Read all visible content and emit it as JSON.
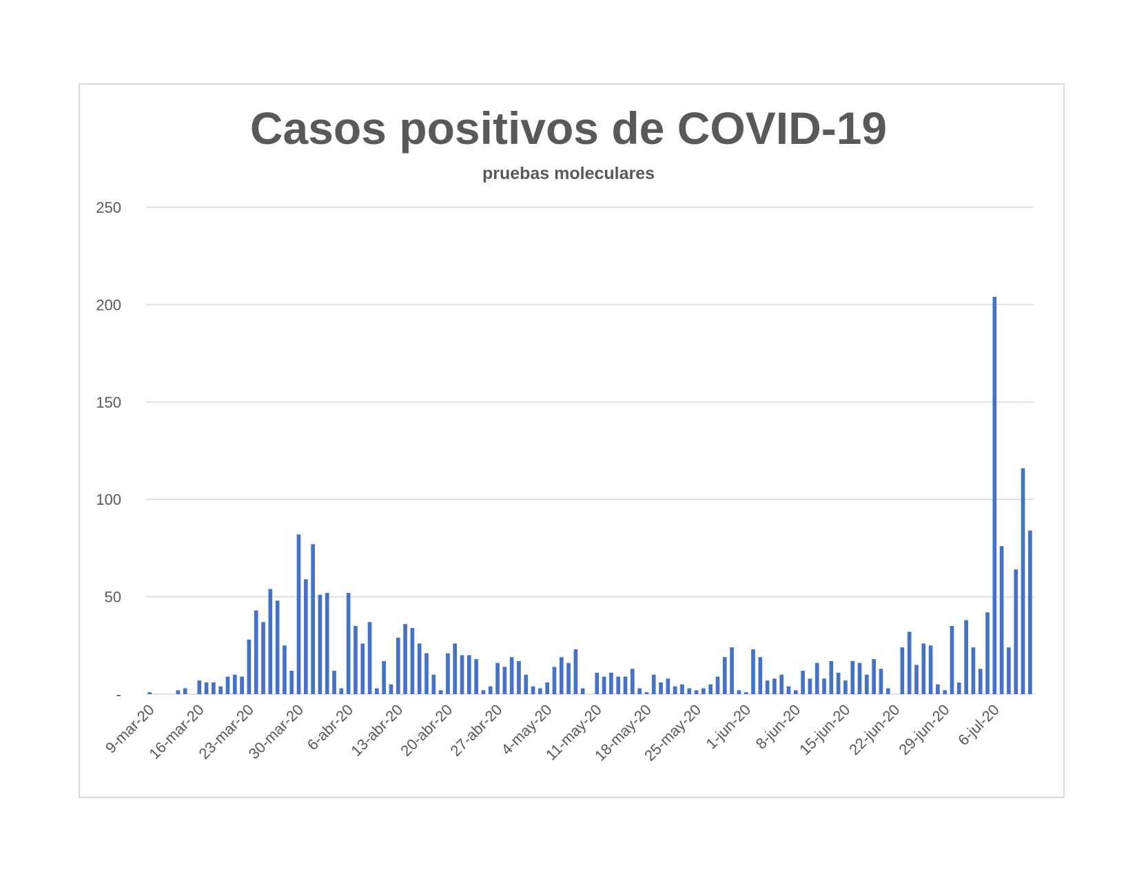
{
  "chart_data": {
    "type": "bar",
    "title": "Casos positivos de COVID-19",
    "subtitle": "pruebas moleculares",
    "xlabel": "",
    "ylabel": "",
    "start_date": "2020-03-09",
    "ylim": [
      0,
      250
    ],
    "yticks": [
      0,
      50,
      100,
      150,
      200,
      250
    ],
    "ytick_labels": [
      "-",
      "50",
      "100",
      "150",
      "200",
      "250"
    ],
    "xtick_labels": [
      "9-mar-20",
      "16-mar-20",
      "23-mar-20",
      "30-mar-20",
      "6-abr-20",
      "13-abr-20",
      "20-abr-20",
      "27-abr-20",
      "4-may-20",
      "11-may-20",
      "18-may-20",
      "25-may-20",
      "1-jun-20",
      "8-jun-20",
      "15-jun-20",
      "22-jun-20",
      "29-jun-20",
      "6-jul-20"
    ],
    "grid": true,
    "bar_color": "#4472c4",
    "values": [
      1,
      0,
      0,
      0,
      2,
      3,
      0,
      7,
      6,
      6,
      4,
      9,
      10,
      9,
      28,
      43,
      37,
      54,
      48,
      25,
      12,
      82,
      59,
      77,
      51,
      52,
      12,
      3,
      52,
      35,
      26,
      37,
      3,
      17,
      5,
      29,
      36,
      34,
      26,
      21,
      10,
      2,
      21,
      26,
      20,
      20,
      18,
      2,
      4,
      16,
      14,
      19,
      17,
      10,
      4,
      3,
      6,
      14,
      19,
      16,
      23,
      3,
      0,
      11,
      9,
      11,
      9,
      9,
      13,
      3,
      1,
      10,
      6,
      8,
      4,
      5,
      3,
      2,
      3,
      5,
      9,
      19,
      24,
      2,
      1,
      23,
      19,
      7,
      8,
      10,
      4,
      2,
      12,
      8,
      16,
      8,
      17,
      11,
      7,
      17,
      16,
      10,
      18,
      13,
      3,
      0,
      24,
      32,
      15,
      26,
      25,
      5,
      2,
      35,
      6,
      38,
      24,
      13,
      42,
      204,
      76,
      24,
      64,
      116,
      84
    ]
  }
}
